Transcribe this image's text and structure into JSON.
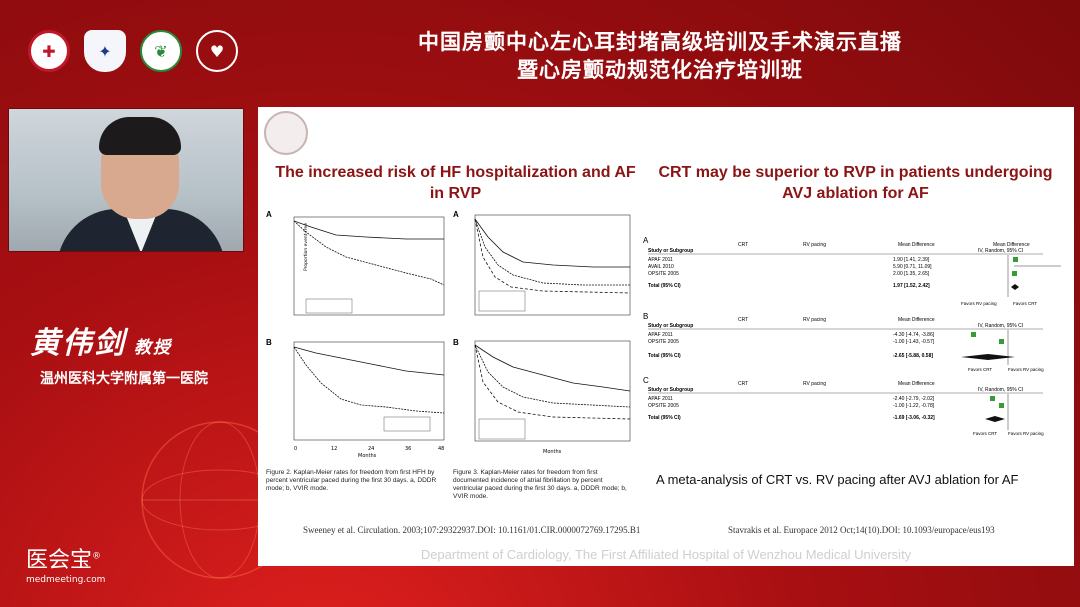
{
  "header": {
    "title_line1": "中国房颤中心左心耳封堵高级培训及手术演示直播",
    "title_line2": "暨心房颤动规范化治疗培训班",
    "logos": [
      {
        "icon": "society-logo-icon",
        "glyph": "✚"
      },
      {
        "icon": "hospital-shield-icon",
        "glyph": "✦"
      },
      {
        "icon": "university-emblem-icon",
        "glyph": "❦"
      },
      {
        "icon": "heart-foundation-icon",
        "glyph": "♥"
      }
    ]
  },
  "speaker": {
    "name": "黄伟剑",
    "title": "教授",
    "affiliation": "温州医科大学附属第一医院"
  },
  "brand": {
    "name": "医会宝",
    "url": "medmeeting.com",
    "mark": "®"
  },
  "slide": {
    "left_heading": "The increased risk of HF hospitalization and AF in RVP",
    "right_heading": "CRT may be superior to RVP in patients undergoing AVJ ablation for AF",
    "figure2_caption": "Figure 2. Kaplan-Meier rates for freedom from first HFH by percent ventricular paced during the first 30 days. a, DDDR mode; b, VVIR mode.",
    "figure3_caption": "Figure 3. Kaplan-Meier rates for freedom from first documented incidence of atrial fibrillation by percent ventricular paced during the first 30 days. a, DDDR mode; b, VVIR mode.",
    "meta_caption": "A meta-analysis of CRT vs. RV pacing after AVJ ablation for AF",
    "reference_left": "Sweeney et al. Circulation. 2003;107:29322937.DOI: 10.1161/01.CIR.0000072769.17295.B1",
    "reference_right": "Stavrakis et al. Europace 2012 Oct;14(10).DOI: 10.1093/europace/eus193",
    "watermark": "Department of Cardiology, The First Affiliated Hospital of Wenzhou Medical University",
    "km_axis_label": "Proportion event-free",
    "km_x_label": "Months",
    "km_x_ticks": [
      "0",
      "12",
      "24",
      "36",
      "48"
    ],
    "km_panels": [
      "A",
      "B"
    ],
    "forest": {
      "panels": [
        "A",
        "B",
        "C"
      ],
      "header_study": "Study or Subgroup",
      "header_crt": "CRT",
      "header_rv": "RV pacing",
      "header_md": "Mean Difference",
      "header_ci": "IV, Random, 95% CI",
      "rows_a": [
        {
          "study": "APAF 2011",
          "md": "1.90 [1.41, 2.39]"
        },
        {
          "study": "AVAIL 2010",
          "md": "5.90 [0.71, 11.09]"
        },
        {
          "study": "OPSITE 2005",
          "md": "2.00 [1.35, 2.65]"
        }
      ],
      "total_a": "1.97 [1.52, 2.42]",
      "rows_b": [
        {
          "study": "APAF 2011",
          "md": "-4.30 [-4.74, -3.86]"
        },
        {
          "study": "OPSITE 2005",
          "md": "-1.00 [-1.43, -0.57]"
        }
      ],
      "total_b": "-2.65 [-5.88, 0.58]",
      "rows_c": [
        {
          "study": "APAF 2011",
          "md": "-2.40 [-2.79, -2.02]"
        },
        {
          "study": "OPSITE 2005",
          "md": "-1.00 [-1.22, -0.78]"
        }
      ],
      "total_c": "-1.69 [-3.06, -0.32]",
      "favours_a_left": "Favors RV pacing",
      "favours_a_right": "Favors CRT",
      "favours_b_left": "Favors CRT",
      "favours_b_right": "Favors RV pacing",
      "total_label": "Total (95% CI)"
    }
  },
  "colors": {
    "background": "#a80f12",
    "heading": "#8b1414"
  }
}
